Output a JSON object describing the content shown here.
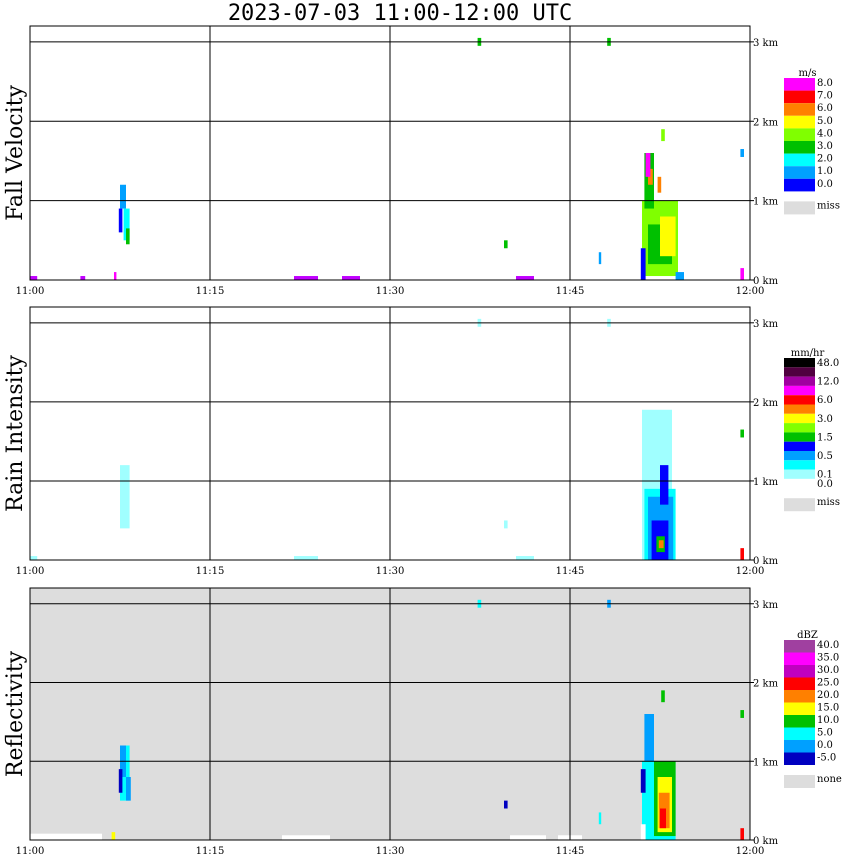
{
  "title": "2023-07-03  11:00-12:00 UTC",
  "x_ticks": [
    "11:00",
    "11:15",
    "11:30",
    "11:45",
    "12:00"
  ],
  "y_ticks": [
    "0 km",
    "1 km",
    "2 km",
    "3 km"
  ],
  "chart_data": [
    {
      "type": "heatmap",
      "ylabel": "Fall Velocity",
      "unit": "m/s",
      "x_range": [
        "11:00",
        "12:00"
      ],
      "y_range_km": [
        0,
        3.2
      ],
      "grid": true,
      "legend_position": "right",
      "legend": [
        {
          "label": "8.0",
          "color": "#ff00ff"
        },
        {
          "label": "7.0",
          "color": "#ff0000"
        },
        {
          "label": "6.0",
          "color": "#ff8000"
        },
        {
          "label": "5.0",
          "color": "#ffff00"
        },
        {
          "label": "4.0",
          "color": "#80ff00"
        },
        {
          "label": "3.0",
          "color": "#00c000"
        },
        {
          "label": "2.0",
          "color": "#00ffff"
        },
        {
          "label": "1.0",
          "color": "#00a0ff"
        },
        {
          "label": "0.0",
          "color": "#0000ff"
        },
        {
          "label": "miss",
          "color": "#dddddd"
        }
      ],
      "background": "#ffffff",
      "cells": [
        {
          "t": [
            7.5,
            8.0
          ],
          "h": [
            0.9,
            1.2
          ],
          "c": "#00a0ff"
        },
        {
          "t": [
            7.8,
            8.3
          ],
          "h": [
            0.5,
            0.9
          ],
          "c": "#00ffff"
        },
        {
          "t": [
            8.0,
            8.3
          ],
          "h": [
            0.45,
            0.65
          ],
          "c": "#00c000"
        },
        {
          "t": [
            7.4,
            7.7
          ],
          "h": [
            0.6,
            0.9
          ],
          "c": "#0000ff"
        },
        {
          "t": [
            0,
            0.6
          ],
          "h": [
            0,
            0.05
          ],
          "c": "#c000ff"
        },
        {
          "t": [
            4.2,
            4.6
          ],
          "h": [
            0,
            0.05
          ],
          "c": "#c000ff"
        },
        {
          "t": [
            7.0,
            7.2
          ],
          "h": [
            0,
            0.1
          ],
          "c": "#ff00ff"
        },
        {
          "t": [
            22,
            24
          ],
          "h": [
            0,
            0.05
          ],
          "c": "#c000ff"
        },
        {
          "t": [
            26,
            27.5
          ],
          "h": [
            0,
            0.05
          ],
          "c": "#c000ff"
        },
        {
          "t": [
            40.5,
            42
          ],
          "h": [
            0,
            0.05
          ],
          "c": "#c000ff"
        },
        {
          "t": [
            39.5,
            39.8
          ],
          "h": [
            0.4,
            0.5
          ],
          "c": "#00c000"
        },
        {
          "t": [
            37.3,
            37.6
          ],
          "h": [
            2.95,
            3.05
          ],
          "c": "#00c000"
        },
        {
          "t": [
            48.1,
            48.4
          ],
          "h": [
            2.95,
            3.05
          ],
          "c": "#00c000"
        },
        {
          "t": [
            51.0,
            54.0
          ],
          "h": [
            0.05,
            1.0
          ],
          "c": "#80ff00"
        },
        {
          "t": [
            51.5,
            53.5
          ],
          "h": [
            0.2,
            0.7
          ],
          "c": "#00c000"
        },
        {
          "t": [
            51.2,
            52.0
          ],
          "h": [
            0.9,
            1.6
          ],
          "c": "#00c000"
        },
        {
          "t": [
            51.5,
            51.9
          ],
          "h": [
            1.2,
            1.4
          ],
          "c": "#ff8000"
        },
        {
          "t": [
            51.3,
            51.7
          ],
          "h": [
            1.3,
            1.6
          ],
          "c": "#ff00ff"
        },
        {
          "t": [
            52.5,
            53.8
          ],
          "h": [
            0.3,
            0.8
          ],
          "c": "#ffff00"
        },
        {
          "t": [
            52.3,
            52.6
          ],
          "h": [
            1.1,
            1.3
          ],
          "c": "#ff8000"
        },
        {
          "t": [
            52.6,
            52.9
          ],
          "h": [
            1.75,
            1.9
          ],
          "c": "#80ff00"
        },
        {
          "t": [
            50.9,
            51.3
          ],
          "h": [
            0.0,
            0.4
          ],
          "c": "#0000ff"
        },
        {
          "t": [
            53.8,
            54.5
          ],
          "h": [
            0.0,
            0.1
          ],
          "c": "#00a0ff"
        },
        {
          "t": [
            47.4,
            47.6
          ],
          "h": [
            0.2,
            0.35
          ],
          "c": "#00a0ff"
        },
        {
          "t": [
            59.2,
            59.5
          ],
          "h": [
            1.55,
            1.65
          ],
          "c": "#00a0ff"
        },
        {
          "t": [
            59.2,
            59.5
          ],
          "h": [
            0.0,
            0.15
          ],
          "c": "#ff00ff"
        }
      ]
    },
    {
      "type": "heatmap",
      "ylabel": "Rain Intensity",
      "unit": "mm/hr",
      "x_range": [
        "11:00",
        "12:00"
      ],
      "y_range_km": [
        0,
        3.2
      ],
      "grid": true,
      "legend_position": "right",
      "legend": [
        {
          "label": "48.0",
          "color": "#000000"
        },
        {
          "label": "",
          "color": "#500040"
        },
        {
          "label": "12.0",
          "color": "#a000a0"
        },
        {
          "label": "",
          "color": "#ff00ff"
        },
        {
          "label": "6.0",
          "color": "#ff0000"
        },
        {
          "label": "",
          "color": "#ff8000"
        },
        {
          "label": "3.0",
          "color": "#ffff00"
        },
        {
          "label": "",
          "color": "#80ff00"
        },
        {
          "label": "1.5",
          "color": "#00c000"
        },
        {
          "label": "",
          "color": "#0000ff"
        },
        {
          "label": "0.5",
          "color": "#00a0ff"
        },
        {
          "label": "",
          "color": "#00ffff"
        },
        {
          "label": "0.1",
          "color": "#a0ffff"
        },
        {
          "label": "0.0",
          "color": "#ffffff"
        },
        {
          "label": "miss",
          "color": "#dddddd"
        }
      ],
      "background": "#ffffff",
      "cells": [
        {
          "t": [
            7.5,
            8.3
          ],
          "h": [
            0.4,
            1.2
          ],
          "c": "#a0ffff"
        },
        {
          "t": [
            37.3,
            37.6
          ],
          "h": [
            2.95,
            3.05
          ],
          "c": "#a0ffff"
        },
        {
          "t": [
            48.1,
            48.4
          ],
          "h": [
            2.95,
            3.05
          ],
          "c": "#a0ffff"
        },
        {
          "t": [
            0,
            0.6
          ],
          "h": [
            0,
            0.05
          ],
          "c": "#a0ffff"
        },
        {
          "t": [
            22,
            24
          ],
          "h": [
            0,
            0.05
          ],
          "c": "#a0ffff"
        },
        {
          "t": [
            40.5,
            42
          ],
          "h": [
            0,
            0.05
          ],
          "c": "#a0ffff"
        },
        {
          "t": [
            51.0,
            53.5
          ],
          "h": [
            0.0,
            1.9
          ],
          "c": "#a0ffff"
        },
        {
          "t": [
            51.2,
            53.8
          ],
          "h": [
            0.0,
            0.9
          ],
          "c": "#00ffff"
        },
        {
          "t": [
            51.5,
            53.6
          ],
          "h": [
            0.0,
            0.8
          ],
          "c": "#00a0ff"
        },
        {
          "t": [
            52.5,
            53.2
          ],
          "h": [
            0.7,
            1.2
          ],
          "c": "#0000ff"
        },
        {
          "t": [
            51.8,
            53.2
          ],
          "h": [
            0.0,
            0.5
          ],
          "c": "#0000ff"
        },
        {
          "t": [
            52.2,
            52.9
          ],
          "h": [
            0.1,
            0.3
          ],
          "c": "#00c000"
        },
        {
          "t": [
            52.4,
            52.8
          ],
          "h": [
            0.15,
            0.25
          ],
          "c": "#ff8000"
        },
        {
          "t": [
            59.2,
            59.5
          ],
          "h": [
            1.55,
            1.65
          ],
          "c": "#00c000"
        },
        {
          "t": [
            59.2,
            59.5
          ],
          "h": [
            0.0,
            0.15
          ],
          "c": "#ff0000"
        },
        {
          "t": [
            39.5,
            39.8
          ],
          "h": [
            0.4,
            0.5
          ],
          "c": "#a0ffff"
        }
      ]
    },
    {
      "type": "heatmap",
      "ylabel": "Reflectivity",
      "unit": "dBZ",
      "x_range": [
        "11:00",
        "12:00"
      ],
      "y_range_km": [
        0,
        3.2
      ],
      "grid": true,
      "legend_position": "right",
      "legend": [
        {
          "label": "40.0",
          "color": "#a040a0"
        },
        {
          "label": "35.0",
          "color": "#ff00ff"
        },
        {
          "label": "30.0",
          "color": "#c000c0"
        },
        {
          "label": "25.0",
          "color": "#ff0000"
        },
        {
          "label": "20.0",
          "color": "#ff8000"
        },
        {
          "label": "15.0",
          "color": "#ffff00"
        },
        {
          "label": "10.0",
          "color": "#00c000"
        },
        {
          "label": "5.0",
          "color": "#00ffff"
        },
        {
          "label": "0.0",
          "color": "#00a0ff"
        },
        {
          "label": "-5.0",
          "color": "#0000c0"
        },
        {
          "label": "none",
          "color": "#dddddd"
        }
      ],
      "background": "#dddddd",
      "cells": [
        {
          "t": [
            7.5,
            8.3
          ],
          "h": [
            0.5,
            1.2
          ],
          "c": "#00ffff"
        },
        {
          "t": [
            7.5,
            8.0
          ],
          "h": [
            0.8,
            1.2
          ],
          "c": "#00a0ff"
        },
        {
          "t": [
            7.4,
            7.7
          ],
          "h": [
            0.6,
            0.9
          ],
          "c": "#0000c0"
        },
        {
          "t": [
            8.0,
            8.4
          ],
          "h": [
            0.5,
            0.8
          ],
          "c": "#00a0ff"
        },
        {
          "t": [
            0,
            6.0
          ],
          "h": [
            0,
            0.08
          ],
          "c": "#ffffff"
        },
        {
          "t": [
            21,
            25
          ],
          "h": [
            0,
            0.06
          ],
          "c": "#ffffff"
        },
        {
          "t": [
            40,
            43
          ],
          "h": [
            0,
            0.06
          ],
          "c": "#ffffff"
        },
        {
          "t": [
            44,
            46
          ],
          "h": [
            0,
            0.06
          ],
          "c": "#ffffff"
        },
        {
          "t": [
            6.8,
            7.1
          ],
          "h": [
            0,
            0.1
          ],
          "c": "#ffff00"
        },
        {
          "t": [
            37.3,
            37.6
          ],
          "h": [
            2.95,
            3.05
          ],
          "c": "#00ffff"
        },
        {
          "t": [
            48.1,
            48.4
          ],
          "h": [
            2.95,
            3.05
          ],
          "c": "#00a0ff"
        },
        {
          "t": [
            39.5,
            39.8
          ],
          "h": [
            0.4,
            0.5
          ],
          "c": "#0000c0"
        },
        {
          "t": [
            51.0,
            53.8
          ],
          "h": [
            0.0,
            1.0
          ],
          "c": "#00ffff"
        },
        {
          "t": [
            51.2,
            52.0
          ],
          "h": [
            1.0,
            1.6
          ],
          "c": "#00a0ff"
        },
        {
          "t": [
            50.9,
            51.3
          ],
          "h": [
            0.6,
            0.9
          ],
          "c": "#0000c0"
        },
        {
          "t": [
            52.0,
            53.8
          ],
          "h": [
            0.05,
            1.0
          ],
          "c": "#00c000"
        },
        {
          "t": [
            52.3,
            53.5
          ],
          "h": [
            0.1,
            0.8
          ],
          "c": "#ffff00"
        },
        {
          "t": [
            52.4,
            53.3
          ],
          "h": [
            0.15,
            0.6
          ],
          "c": "#ff8000"
        },
        {
          "t": [
            52.5,
            53.0
          ],
          "h": [
            0.15,
            0.4
          ],
          "c": "#ff0000"
        },
        {
          "t": [
            52.6,
            52.9
          ],
          "h": [
            1.75,
            1.9
          ],
          "c": "#00c000"
        },
        {
          "t": [
            50.9,
            51.3
          ],
          "h": [
            0.0,
            0.2
          ],
          "c": "#ffffff"
        },
        {
          "t": [
            47.4,
            47.6
          ],
          "h": [
            0.2,
            0.35
          ],
          "c": "#00ffff"
        },
        {
          "t": [
            59.2,
            59.5
          ],
          "h": [
            1.55,
            1.65
          ],
          "c": "#00c000"
        },
        {
          "t": [
            59.2,
            59.5
          ],
          "h": [
            0.0,
            0.15
          ],
          "c": "#ff0000"
        }
      ]
    }
  ]
}
